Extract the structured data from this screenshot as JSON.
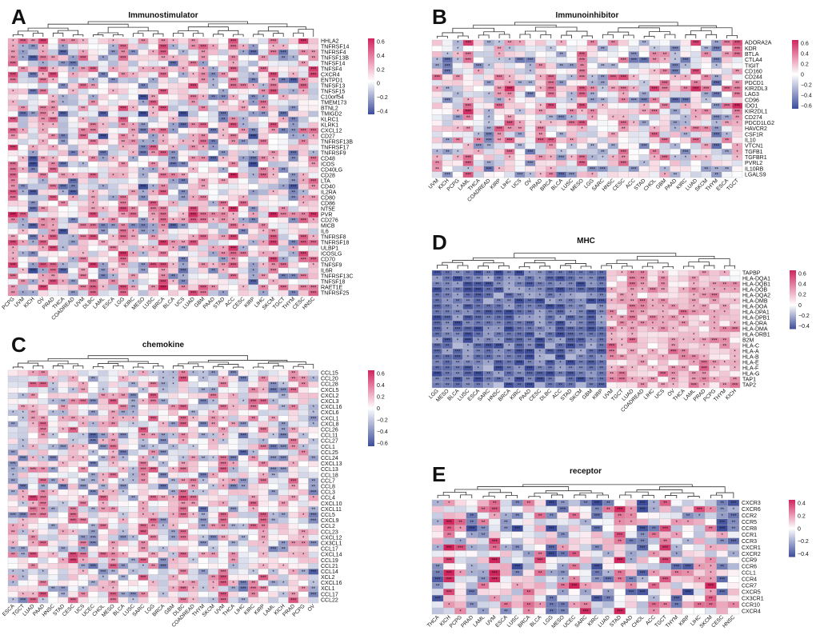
{
  "colors": {
    "high": "#d1245c",
    "mid": "#ffffff",
    "low": "#3c4c9a",
    "grid": "#bdbdbd",
    "tree": "#333333"
  },
  "chart_data": [
    {
      "panel": "A",
      "type": "heatmap",
      "title": "Immunostimulator",
      "rows": [
        "HHLA2",
        "TNFRSF14",
        "TNFRSF4",
        "TNFSF13B",
        "TNFSF14",
        "TNFSF4",
        "CXCR4",
        "ENTPD1",
        "TNFSF13",
        "TNFSF15",
        "C10orf54",
        "TMEM173",
        "BTNL2",
        "TMIGD2",
        "KLRC1",
        "KLRK1",
        "CXCL12",
        "CD27",
        "TNFRSF13B",
        "TNFRSF17",
        "TNFRSF9",
        "CD48",
        "ICOS",
        "CD40LG",
        "CD28",
        "LTA",
        "CD40",
        "IL2RA",
        "CD80",
        "CD86",
        "NT5E",
        "PVR",
        "CD276",
        "MICB",
        "IL6",
        "TNFRSF8",
        "TNFRSF18",
        "ULBP1",
        "ICOSLG",
        "CD70",
        "TNFSF9",
        "IL6R",
        "TNFRSF13C",
        "TNFSF18",
        "RAET1E",
        "TNFRSF25"
      ],
      "columns": [
        "PCPG",
        "UVM",
        "KICH",
        "OV",
        "PRAD",
        "THCA",
        "COADREAD",
        "UVM",
        "DLBC",
        "LAML",
        "ESCA",
        "LGG",
        "KIRC",
        "MESO",
        "LUSC",
        "BRCA",
        "BLCA",
        "UCS",
        "LUAD",
        "GBM",
        "PAAD",
        "STAD",
        "ACC",
        "CESC",
        "KIRP",
        "LIHC",
        "SKCM",
        "TGCT",
        "THYM",
        "CESC",
        "HNSC"
      ],
      "colorbar": {
        "ticks": [
          "0.6",
          "0.4",
          "0.2",
          "0",
          "−0.2",
          "−0.4"
        ],
        "range": [
          -0.5,
          0.65
        ]
      }
    },
    {
      "panel": "B",
      "type": "heatmap",
      "title": "Immunoinhibitor",
      "rows": [
        "ADORA2A",
        "KDR",
        "BTLA",
        "CTLA4",
        "TIGIT",
        "CD160",
        "CD244",
        "PDCD1",
        "KIR2DL3",
        "LAG3",
        "CD96",
        "IDO1",
        "KIR2DL1",
        "CD274",
        "PDCD1LG2",
        "HAVCR2",
        "CSF1R",
        "IL10",
        "VTCN1",
        "TGFB1",
        "TGFBR1",
        "PVRL2",
        "IL10RB",
        "LGALS9"
      ],
      "columns": [
        "UVM",
        "KICH",
        "PCPG",
        "LAML",
        "THCA",
        "COADREAD",
        "KIRP",
        "LIHC",
        "UCS",
        "OV",
        "PRAD",
        "BRCA",
        "BLCA",
        "LUSC",
        "MESO",
        "LGG",
        "SARC",
        "HNSC",
        "CESC",
        "ACC",
        "STAD",
        "CHOL",
        "GBM",
        "PAAD",
        "KIRC",
        "LUAD",
        "SKCM",
        "THYM",
        "ESCA",
        "TGCT"
      ],
      "colorbar": {
        "ticks": [
          "0.6",
          "0.4",
          "0.2",
          "0",
          "−0.2",
          "−0.4",
          "−0.6"
        ],
        "range": [
          -0.65,
          0.65
        ]
      }
    },
    {
      "panel": "C",
      "type": "heatmap",
      "title": "chemokine",
      "rows": [
        "CCL15",
        "CCL20",
        "CCL28",
        "CXCL5",
        "CXCL2",
        "CXCL3",
        "CXCL16",
        "CXCL6",
        "CXCL1",
        "CXCL8",
        "CCL26",
        "CCL11",
        "CCL27",
        "CCL1",
        "CCL25",
        "CCL24",
        "CXCL13",
        "CCL13",
        "CCL18",
        "CCL7",
        "CCL8",
        "CCL3",
        "CCL4",
        "CXCL10",
        "CXCL11",
        "CCL5",
        "CXCL9",
        "CCL2",
        "CCL23",
        "CXCL12",
        "CX3CL1",
        "CCL17",
        "CXCL14",
        "CCL19",
        "CCL21",
        "CCL14",
        "XCL2",
        "CXCL16",
        "XCL1",
        "CCL17",
        "CCL22"
      ],
      "columns": [
        "ESCA",
        "TGCT",
        "LUAD",
        "PAAD",
        "HNSC",
        "STAD",
        "CESC",
        "UCS",
        "UCEC",
        "CHOL",
        "MESO",
        "BLCA",
        "LUSC",
        "SARC",
        "LGG",
        "BRCA",
        "GBM",
        "DLBC",
        "COADREAD",
        "THYM",
        "SKCM",
        "UVM",
        "THCA",
        "LIHC",
        "KIRC",
        "KIRP",
        "LAML",
        "KICH",
        "PRAD",
        "PCPG",
        "OV"
      ],
      "colorbar": {
        "ticks": [
          "0.6",
          "0.4",
          "0.2",
          "0",
          "−0.2",
          "−0.4",
          "−0.6"
        ],
        "range": [
          -0.65,
          0.65
        ]
      }
    },
    {
      "panel": "D",
      "type": "heatmap",
      "title": "MHC",
      "rows": [
        "TAPBP",
        "HLA-DQA1",
        "HLA-DQB1",
        "HLA-DOB",
        "HLA-DQA2",
        "HLA-DMB",
        "HLA-DOA",
        "HLA-DPA1",
        "HLA-DPB1",
        "HLA-DRA",
        "HLA-DMA",
        "HLA-DRB1",
        "B2M",
        "HLA-C",
        "HLA-A",
        "HLA-B",
        "HLA-E",
        "HLA-F",
        "HLA-G",
        "TAP1",
        "TAP2"
      ],
      "columns": [
        "LGG",
        "MESO",
        "BLCA",
        "LUSC",
        "ESCA",
        "SARC",
        "HNSC",
        "BRCA",
        "KIRC",
        "PAAD",
        "CESC",
        "DLBC",
        "ACC",
        "STAD",
        "SKCM",
        "GBM",
        "KIRP",
        "UVM",
        "TGCT",
        "LUAD",
        "COADREAD",
        "LIHC",
        "UCS",
        "OV",
        "THCA",
        "LAML",
        "PRAD",
        "PCPG",
        "THYM",
        "KICH"
      ],
      "colorbar": {
        "ticks": [
          "0.6",
          "0.4",
          "0.2",
          "0",
          "−0.2",
          "−0.4"
        ],
        "range": [
          -0.45,
          0.65
        ]
      }
    },
    {
      "panel": "E",
      "type": "heatmap",
      "title": "receptor",
      "rows": [
        "CXCR3",
        "CXCR6",
        "CCR2",
        "CCR5",
        "CCR8",
        "CCR1",
        "CCR3",
        "CXCR1",
        "CXCR2",
        "CCR9",
        "CCR6",
        "CCL1",
        "CCR4",
        "CCR7",
        "CXCR5",
        "CX3CR1",
        "CCR10",
        "CXCR4"
      ],
      "columns": [
        "THCA",
        "KICH",
        "PCPG",
        "PRAD",
        "LAML",
        "UVM",
        "ESCA",
        "LUSC",
        "BRCA",
        "BLCA",
        "LGG",
        "MESO",
        "UCEC",
        "SARC",
        "KIRC",
        "LUAD",
        "STAD",
        "PAAD",
        "CHOL",
        "ACC",
        "TGCT",
        "THYM",
        "KIRP",
        "LIHC",
        "SKCM",
        "CESC",
        "HNSC"
      ],
      "colorbar": {
        "ticks": [
          "0.4",
          "0.2",
          "0",
          "−0.2",
          "−0.4"
        ],
        "range": [
          -0.5,
          0.5
        ]
      }
    }
  ]
}
